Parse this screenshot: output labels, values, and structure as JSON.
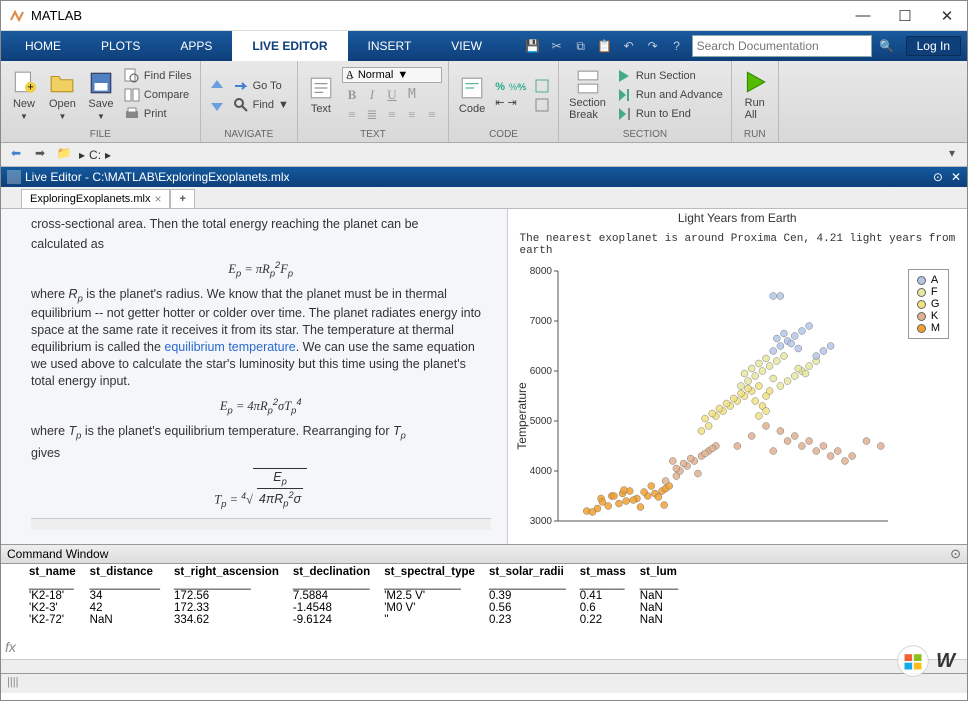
{
  "window": {
    "title": "MATLAB"
  },
  "tabs": {
    "items": [
      "HOME",
      "PLOTS",
      "APPS",
      "LIVE EDITOR",
      "INSERT",
      "VIEW"
    ],
    "active": 3,
    "search_placeholder": "Search Documentation",
    "login": "Log In"
  },
  "ribbon": {
    "file": {
      "label": "FILE",
      "new": "New",
      "open": "Open",
      "save": "Save",
      "findfiles": "Find Files",
      "compare": "Compare",
      "print": "Print"
    },
    "navigate": {
      "label": "NAVIGATE",
      "goto": "Go To",
      "find": "Find"
    },
    "text": {
      "label": "TEXT",
      "text": "Text",
      "normal": "Normal"
    },
    "code": {
      "label": "CODE",
      "code": "Code"
    },
    "section": {
      "label": "SECTION",
      "break": "Section\nBreak",
      "runsection": "Run Section",
      "runadvance": "Run and Advance",
      "runend": "Run to End"
    },
    "run": {
      "label": "RUN",
      "runall": "Run\nAll"
    }
  },
  "nav": {
    "path": "C:",
    "drive_icon": "▸"
  },
  "editor": {
    "title": "Live Editor - C:\\MATLAB\\ExploringExoplanets.mlx",
    "tab_name": "ExploringExoplanets.mlx"
  },
  "doc": {
    "p1a": "cross-sectional area.  Then the total energy reaching the planet can be",
    "p1b": "calculated as",
    "eq1": "E_p = \\pi R_p^2 F_p",
    "p2": "where  R_p  is the planet's radius.  We know that the planet must be in thermal equilibrium -- not getter hotter or colder over time.  The planet radiates energy into space at the same rate it receives it from its star.  The temperature at thermal equilibrium is called the ",
    "link1": "equilibrium temperature",
    "p3": ".  We can use the same equation we used above to calculate the star's luminosity but this time using the planet's total energy input.",
    "eq2": "E_p = 4\\pi R_p^2 \\sigma T_p^4",
    "p4a": "where  T_p  is the planet's equilibrium temperature.  Rearranging for  T_p",
    "p4b": "gives"
  },
  "chart": {
    "type": "scatter",
    "title": "Light Years from Earth",
    "note": "The nearest exoplanet is around Proxima Cen, 4.21 light years from earth",
    "ylabel": "Temperature",
    "ylim": [
      3000,
      8000
    ],
    "ytick_step": 1000,
    "xlim": [
      0,
      460
    ],
    "legend": [
      {
        "label": "A",
        "color": "#b4c6e7"
      },
      {
        "label": "F",
        "color": "#e6e6a0"
      },
      {
        "label": "G",
        "color": "#f0e080"
      },
      {
        "label": "K",
        "color": "#e0b090"
      },
      {
        "label": "M",
        "color": "#f0a030"
      }
    ],
    "points_M": [
      [
        40,
        3200
      ],
      [
        55,
        3250
      ],
      [
        70,
        3300
      ],
      [
        85,
        3350
      ],
      [
        95,
        3400
      ],
      [
        110,
        3450
      ],
      [
        125,
        3500
      ],
      [
        135,
        3550
      ],
      [
        145,
        3600
      ],
      [
        150,
        3650
      ],
      [
        155,
        3700
      ],
      [
        60,
        3450
      ],
      [
        75,
        3500
      ],
      [
        90,
        3550
      ],
      [
        100,
        3600
      ],
      [
        115,
        3280
      ],
      [
        48,
        3180
      ],
      [
        62,
        3380
      ],
      [
        78,
        3500
      ],
      [
        92,
        3620
      ],
      [
        105,
        3420
      ],
      [
        120,
        3580
      ],
      [
        130,
        3700
      ],
      [
        140,
        3480
      ],
      [
        148,
        3320
      ]
    ],
    "points_K": [
      [
        150,
        3800
      ],
      [
        165,
        3900
      ],
      [
        170,
        4000
      ],
      [
        180,
        4100
      ],
      [
        190,
        4200
      ],
      [
        200,
        4300
      ],
      [
        210,
        4400
      ],
      [
        220,
        4500
      ],
      [
        165,
        4050
      ],
      [
        175,
        4150
      ],
      [
        185,
        4250
      ],
      [
        195,
        3950
      ],
      [
        205,
        4350
      ],
      [
        215,
        4450
      ],
      [
        160,
        4200
      ],
      [
        250,
        4500
      ],
      [
        270,
        4700
      ],
      [
        290,
        4900
      ],
      [
        310,
        4800
      ],
      [
        330,
        4700
      ],
      [
        350,
        4600
      ],
      [
        370,
        4500
      ],
      [
        390,
        4400
      ],
      [
        410,
        4300
      ],
      [
        430,
        4600
      ],
      [
        450,
        4500
      ],
      [
        300,
        4400
      ],
      [
        320,
        4600
      ],
      [
        340,
        4500
      ],
      [
        360,
        4400
      ],
      [
        380,
        4300
      ],
      [
        400,
        4200
      ]
    ],
    "points_G": [
      [
        200,
        4800
      ],
      [
        210,
        4900
      ],
      [
        220,
        5100
      ],
      [
        230,
        5200
      ],
      [
        240,
        5300
      ],
      [
        250,
        5400
      ],
      [
        260,
        5500
      ],
      [
        270,
        5600
      ],
      [
        280,
        5700
      ],
      [
        205,
        5050
      ],
      [
        215,
        5150
      ],
      [
        225,
        5250
      ],
      [
        235,
        5350
      ],
      [
        245,
        5450
      ],
      [
        255,
        5550
      ],
      [
        265,
        5650
      ],
      [
        275,
        5400
      ],
      [
        285,
        5300
      ],
      [
        290,
        5500
      ],
      [
        280,
        5100
      ],
      [
        290,
        5200
      ],
      [
        295,
        5600
      ]
    ],
    "points_F": [
      [
        255,
        5700
      ],
      [
        265,
        5800
      ],
      [
        275,
        5900
      ],
      [
        285,
        6000
      ],
      [
        295,
        6100
      ],
      [
        305,
        6200
      ],
      [
        315,
        6300
      ],
      [
        320,
        5800
      ],
      [
        330,
        5900
      ],
      [
        340,
        6000
      ],
      [
        350,
        6100
      ],
      [
        360,
        6200
      ],
      [
        260,
        5950
      ],
      [
        270,
        6050
      ],
      [
        280,
        6150
      ],
      [
        290,
        6250
      ],
      [
        300,
        5850
      ],
      [
        310,
        5700
      ],
      [
        335,
        6050
      ],
      [
        345,
        5950
      ]
    ],
    "points_A": [
      [
        300,
        6400
      ],
      [
        310,
        6500
      ],
      [
        320,
        6600
      ],
      [
        330,
        6700
      ],
      [
        340,
        6800
      ],
      [
        350,
        6900
      ],
      [
        360,
        6300
      ],
      [
        370,
        6400
      ],
      [
        380,
        6500
      ],
      [
        305,
        6650
      ],
      [
        315,
        6750
      ],
      [
        325,
        6550
      ],
      [
        335,
        6450
      ],
      [
        300,
        7500
      ],
      [
        310,
        7500
      ]
    ]
  },
  "cmd": {
    "title": "Command Window",
    "cols": [
      "st_name",
      "st_distance",
      "st_right_ascension",
      "st_declination",
      "st_spectral_type",
      "st_solar_radii",
      "st_mass",
      "st_lum"
    ],
    "rows": [
      [
        "'K2-18'",
        "34",
        "172.56",
        "7.5884",
        "'M2.5 V'",
        "0.39",
        "0.41",
        "NaN"
      ],
      [
        "'K2-3'",
        "42",
        "172.33",
        "-1.4548",
        "'M0 V'",
        "0.56",
        "0.6",
        "NaN"
      ],
      [
        "'K2-72'",
        "NaN",
        "334.62",
        "-9.6124",
        "''",
        "0.23",
        "0.22",
        "NaN"
      ]
    ]
  },
  "colors": {
    "tab_bg": "#0e3f7a",
    "ribbon_bg": "#e0e0e0"
  }
}
